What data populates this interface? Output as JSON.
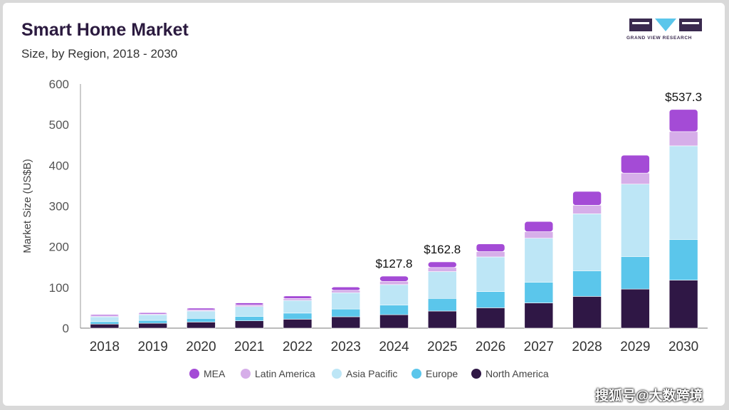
{
  "header": {
    "title": "Smart Home Market",
    "subtitle": "Size, by Region, 2018 - 2030",
    "logo_text": "GRAND VIEW RESEARCH"
  },
  "watermark": "搜狐号@大数跨境",
  "colors": {
    "MEA": "#a44bd6",
    "Latin America": "#d6aee9",
    "Asia Pacific": "#bde6f6",
    "Europe": "#5bc6eb",
    "North America": "#2f1745",
    "axis": "#555555",
    "tick_text": "#333333"
  },
  "chart_data": {
    "type": "bar",
    "stacked": true,
    "title": "Smart Home Market",
    "subtitle": "Size, by Region, 2018 - 2030",
    "xlabel": "",
    "ylabel": "Market Size (US$B)",
    "ylim": [
      0,
      600
    ],
    "yticks": [
      0,
      100,
      200,
      300,
      400,
      500,
      600
    ],
    "grid": false,
    "legend_position": "bottom",
    "categories": [
      "2018",
      "2019",
      "2020",
      "2021",
      "2022",
      "2023",
      "2024",
      "2025",
      "2026",
      "2027",
      "2028",
      "2029",
      "2030"
    ],
    "series": [
      {
        "name": "North America",
        "values": [
          10,
          12,
          15,
          18,
          22,
          28,
          33,
          42,
          50,
          62,
          78,
          96,
          118
        ]
      },
      {
        "name": "Europe",
        "values": [
          6,
          7,
          9,
          11,
          15,
          19,
          24,
          31,
          40,
          51,
          63,
          80,
          100
        ]
      },
      {
        "name": "Asia Pacific",
        "values": [
          12,
          14,
          18,
          24,
          31,
          40,
          50,
          66,
          85,
          108,
          140,
          178,
          230
        ]
      },
      {
        "name": "Latin America",
        "values": [
          2,
          2,
          3,
          4,
          5,
          6,
          8,
          10,
          13,
          16,
          21,
          27,
          35
        ]
      },
      {
        "name": "MEA",
        "values": [
          3,
          3,
          4,
          5,
          6,
          8,
          12.8,
          13.8,
          19,
          25,
          34,
          44,
          54.3
        ]
      }
    ],
    "annotations": [
      {
        "category": "2024",
        "text": "$127.8",
        "value": 127.8
      },
      {
        "category": "2025",
        "text": "$162.8",
        "value": 162.8
      },
      {
        "category": "2030",
        "text": "$537.3",
        "value": 537.3
      }
    ]
  }
}
